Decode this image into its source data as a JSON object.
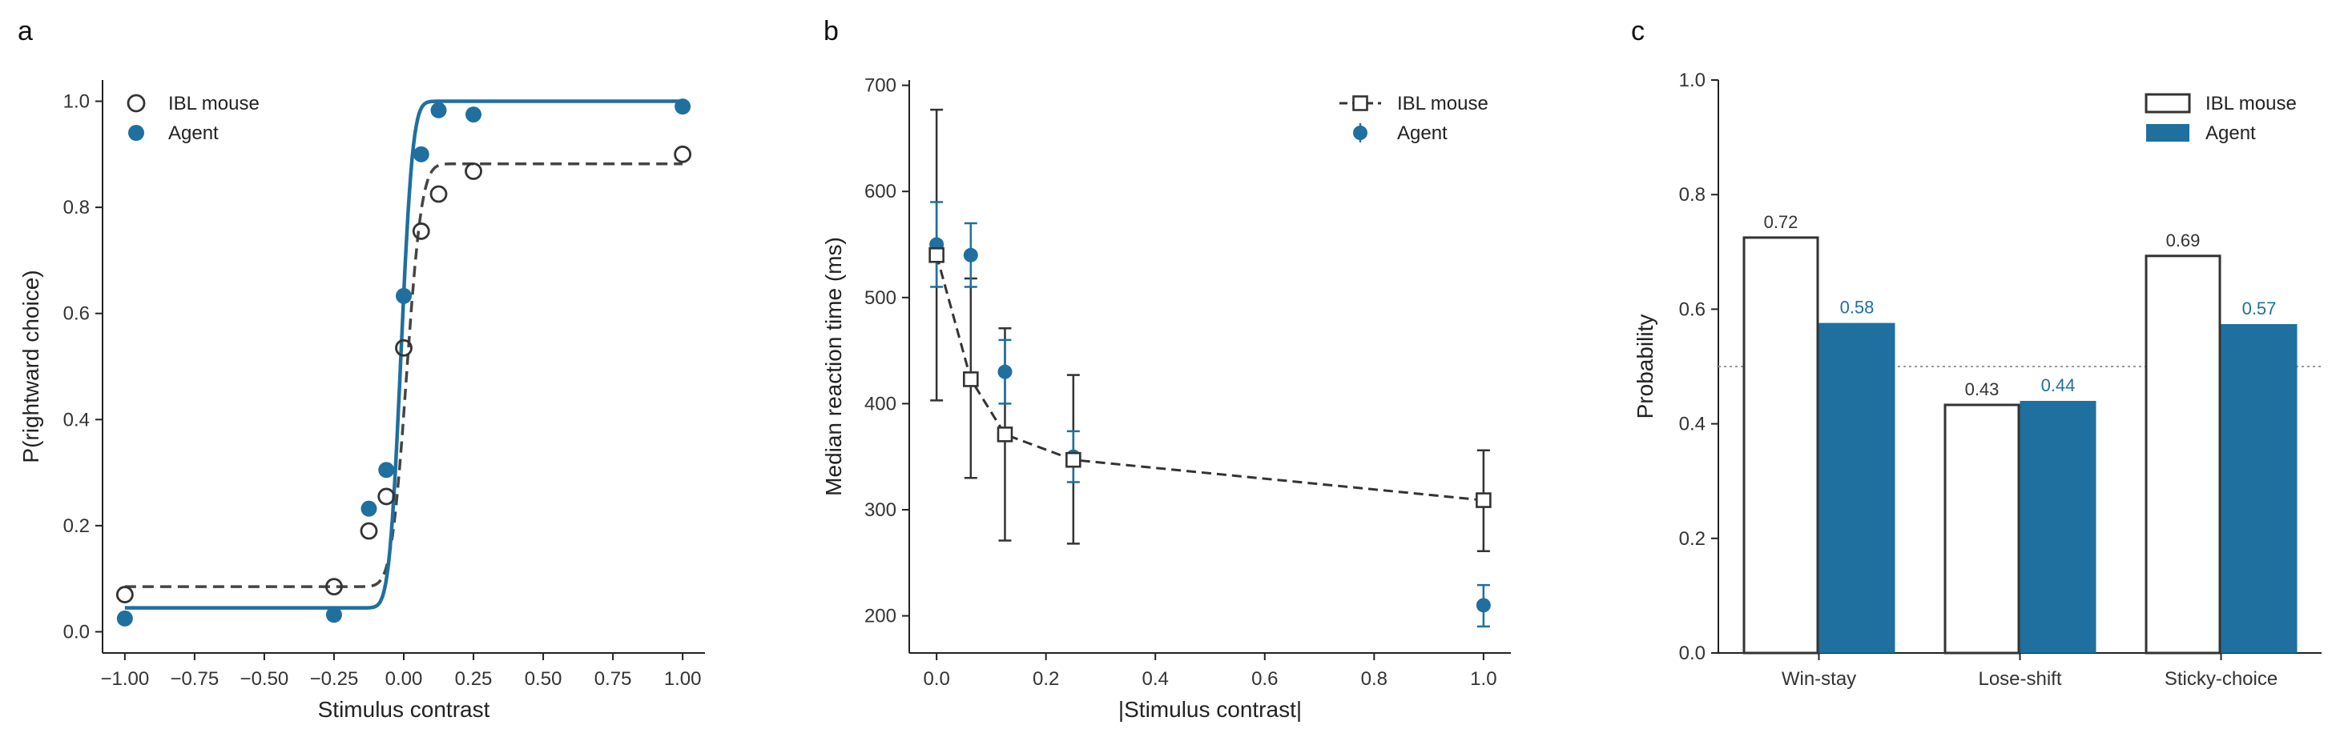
{
  "panels": {
    "a": "a",
    "b": "b",
    "c": "c"
  },
  "colors": {
    "agent": "#1f6f9f",
    "mouse": "#333333",
    "mouse_fit": "#444444",
    "reference_line": "#999999"
  },
  "chart_data": [
    {
      "panel": "a",
      "type": "scatter",
      "xlabel": "Stimulus contrast",
      "ylabel": "P(rightward choice)",
      "xlim": [
        -1.08,
        1.08
      ],
      "ylim": [
        -0.04,
        1.04
      ],
      "x_ticks": [
        -1.0,
        -0.75,
        -0.5,
        -0.25,
        0.0,
        0.25,
        0.5,
        0.75,
        1.0
      ],
      "x_tick_labels": [
        "−1.00",
        "−0.75",
        "−0.50",
        "−0.25",
        "0.00",
        "0.25",
        "0.50",
        "0.75",
        "1.00"
      ],
      "y_ticks": [
        0.0,
        0.2,
        0.4,
        0.6,
        0.8,
        1.0
      ],
      "y_tick_labels": [
        "0.0",
        "0.2",
        "0.4",
        "0.6",
        "0.8",
        "1.0"
      ],
      "legend_position": "top-left",
      "series": [
        {
          "name": "IBL mouse",
          "style": "open-circle",
          "x": [
            -1.0,
            -0.25,
            -0.125,
            -0.0625,
            0.0,
            0.0625,
            0.125,
            0.25,
            1.0
          ],
          "y": [
            0.07,
            0.085,
            0.19,
            0.255,
            0.535,
            0.755,
            0.825,
            0.868,
            0.9
          ]
        },
        {
          "name": "Agent",
          "style": "filled-circle",
          "x": [
            -1.0,
            -0.25,
            -0.125,
            -0.0625,
            0.0,
            0.0625,
            0.125,
            0.25,
            1.0
          ],
          "y": [
            0.025,
            0.032,
            0.232,
            0.305,
            0.633,
            0.9,
            0.983,
            0.975,
            0.99
          ]
        }
      ],
      "fits": [
        {
          "series": "IBL mouse",
          "style": "dashed",
          "lower": 0.085,
          "upper": 0.882,
          "mu": 0.01,
          "sigma": 0.043
        },
        {
          "series": "Agent",
          "style": "solid",
          "lower": 0.045,
          "upper": 1.0,
          "mu": -0.01,
          "sigma": 0.033
        }
      ]
    },
    {
      "panel": "b",
      "type": "line",
      "xlabel": "|Stimulus contrast|",
      "ylabel": "Median reaction time (ms)",
      "xlim": [
        -0.05,
        1.05
      ],
      "ylim": [
        165,
        705
      ],
      "x_ticks": [
        0.0,
        0.2,
        0.4,
        0.6,
        0.8,
        1.0
      ],
      "x_tick_labels": [
        "0.0",
        "0.2",
        "0.4",
        "0.6",
        "0.8",
        "1.0"
      ],
      "y_ticks": [
        200,
        300,
        400,
        500,
        600,
        700
      ],
      "y_tick_labels": [
        "200",
        "300",
        "400",
        "500",
        "600",
        "700"
      ],
      "legend_position": "top-right",
      "series": [
        {
          "name": "IBL mouse",
          "style": "dashed-open-square",
          "x": [
            0.0,
            0.0625,
            0.125,
            0.25,
            1.0
          ],
          "y": [
            540,
            423,
            371,
            347,
            309
          ],
          "err_low": [
            403,
            330,
            271,
            268,
            261
          ],
          "err_high": [
            677,
            518,
            471,
            427,
            356
          ]
        },
        {
          "name": "Agent",
          "style": "filled-circle-errorbar",
          "x": [
            0.0,
            0.0625,
            0.125,
            0.25,
            1.0
          ],
          "y": [
            550,
            540,
            430,
            350,
            210
          ],
          "err_low": [
            510,
            510,
            400,
            326,
            190
          ],
          "err_high": [
            590,
            570,
            460,
            374,
            229
          ]
        }
      ]
    },
    {
      "panel": "c",
      "type": "bar",
      "ylabel": "Probability",
      "categories": [
        "Win-stay",
        "Lose-shift",
        "Sticky-choice"
      ],
      "ylim": [
        0.0,
        1.0
      ],
      "y_ticks": [
        0.0,
        0.2,
        0.4,
        0.6,
        0.8,
        1.0
      ],
      "y_tick_labels": [
        "0.0",
        "0.2",
        "0.4",
        "0.6",
        "0.8",
        "1.0"
      ],
      "reference_line": 0.5,
      "legend_position": "top-right",
      "series": [
        {
          "name": "IBL mouse",
          "style": "open",
          "values": [
            0.725,
            0.433,
            0.693
          ],
          "labels": [
            "0.72",
            "0.43",
            "0.69"
          ]
        },
        {
          "name": "Agent",
          "style": "filled",
          "values": [
            0.576,
            0.44,
            0.574
          ],
          "labels": [
            "0.58",
            "0.44",
            "0.57"
          ]
        }
      ]
    }
  ]
}
